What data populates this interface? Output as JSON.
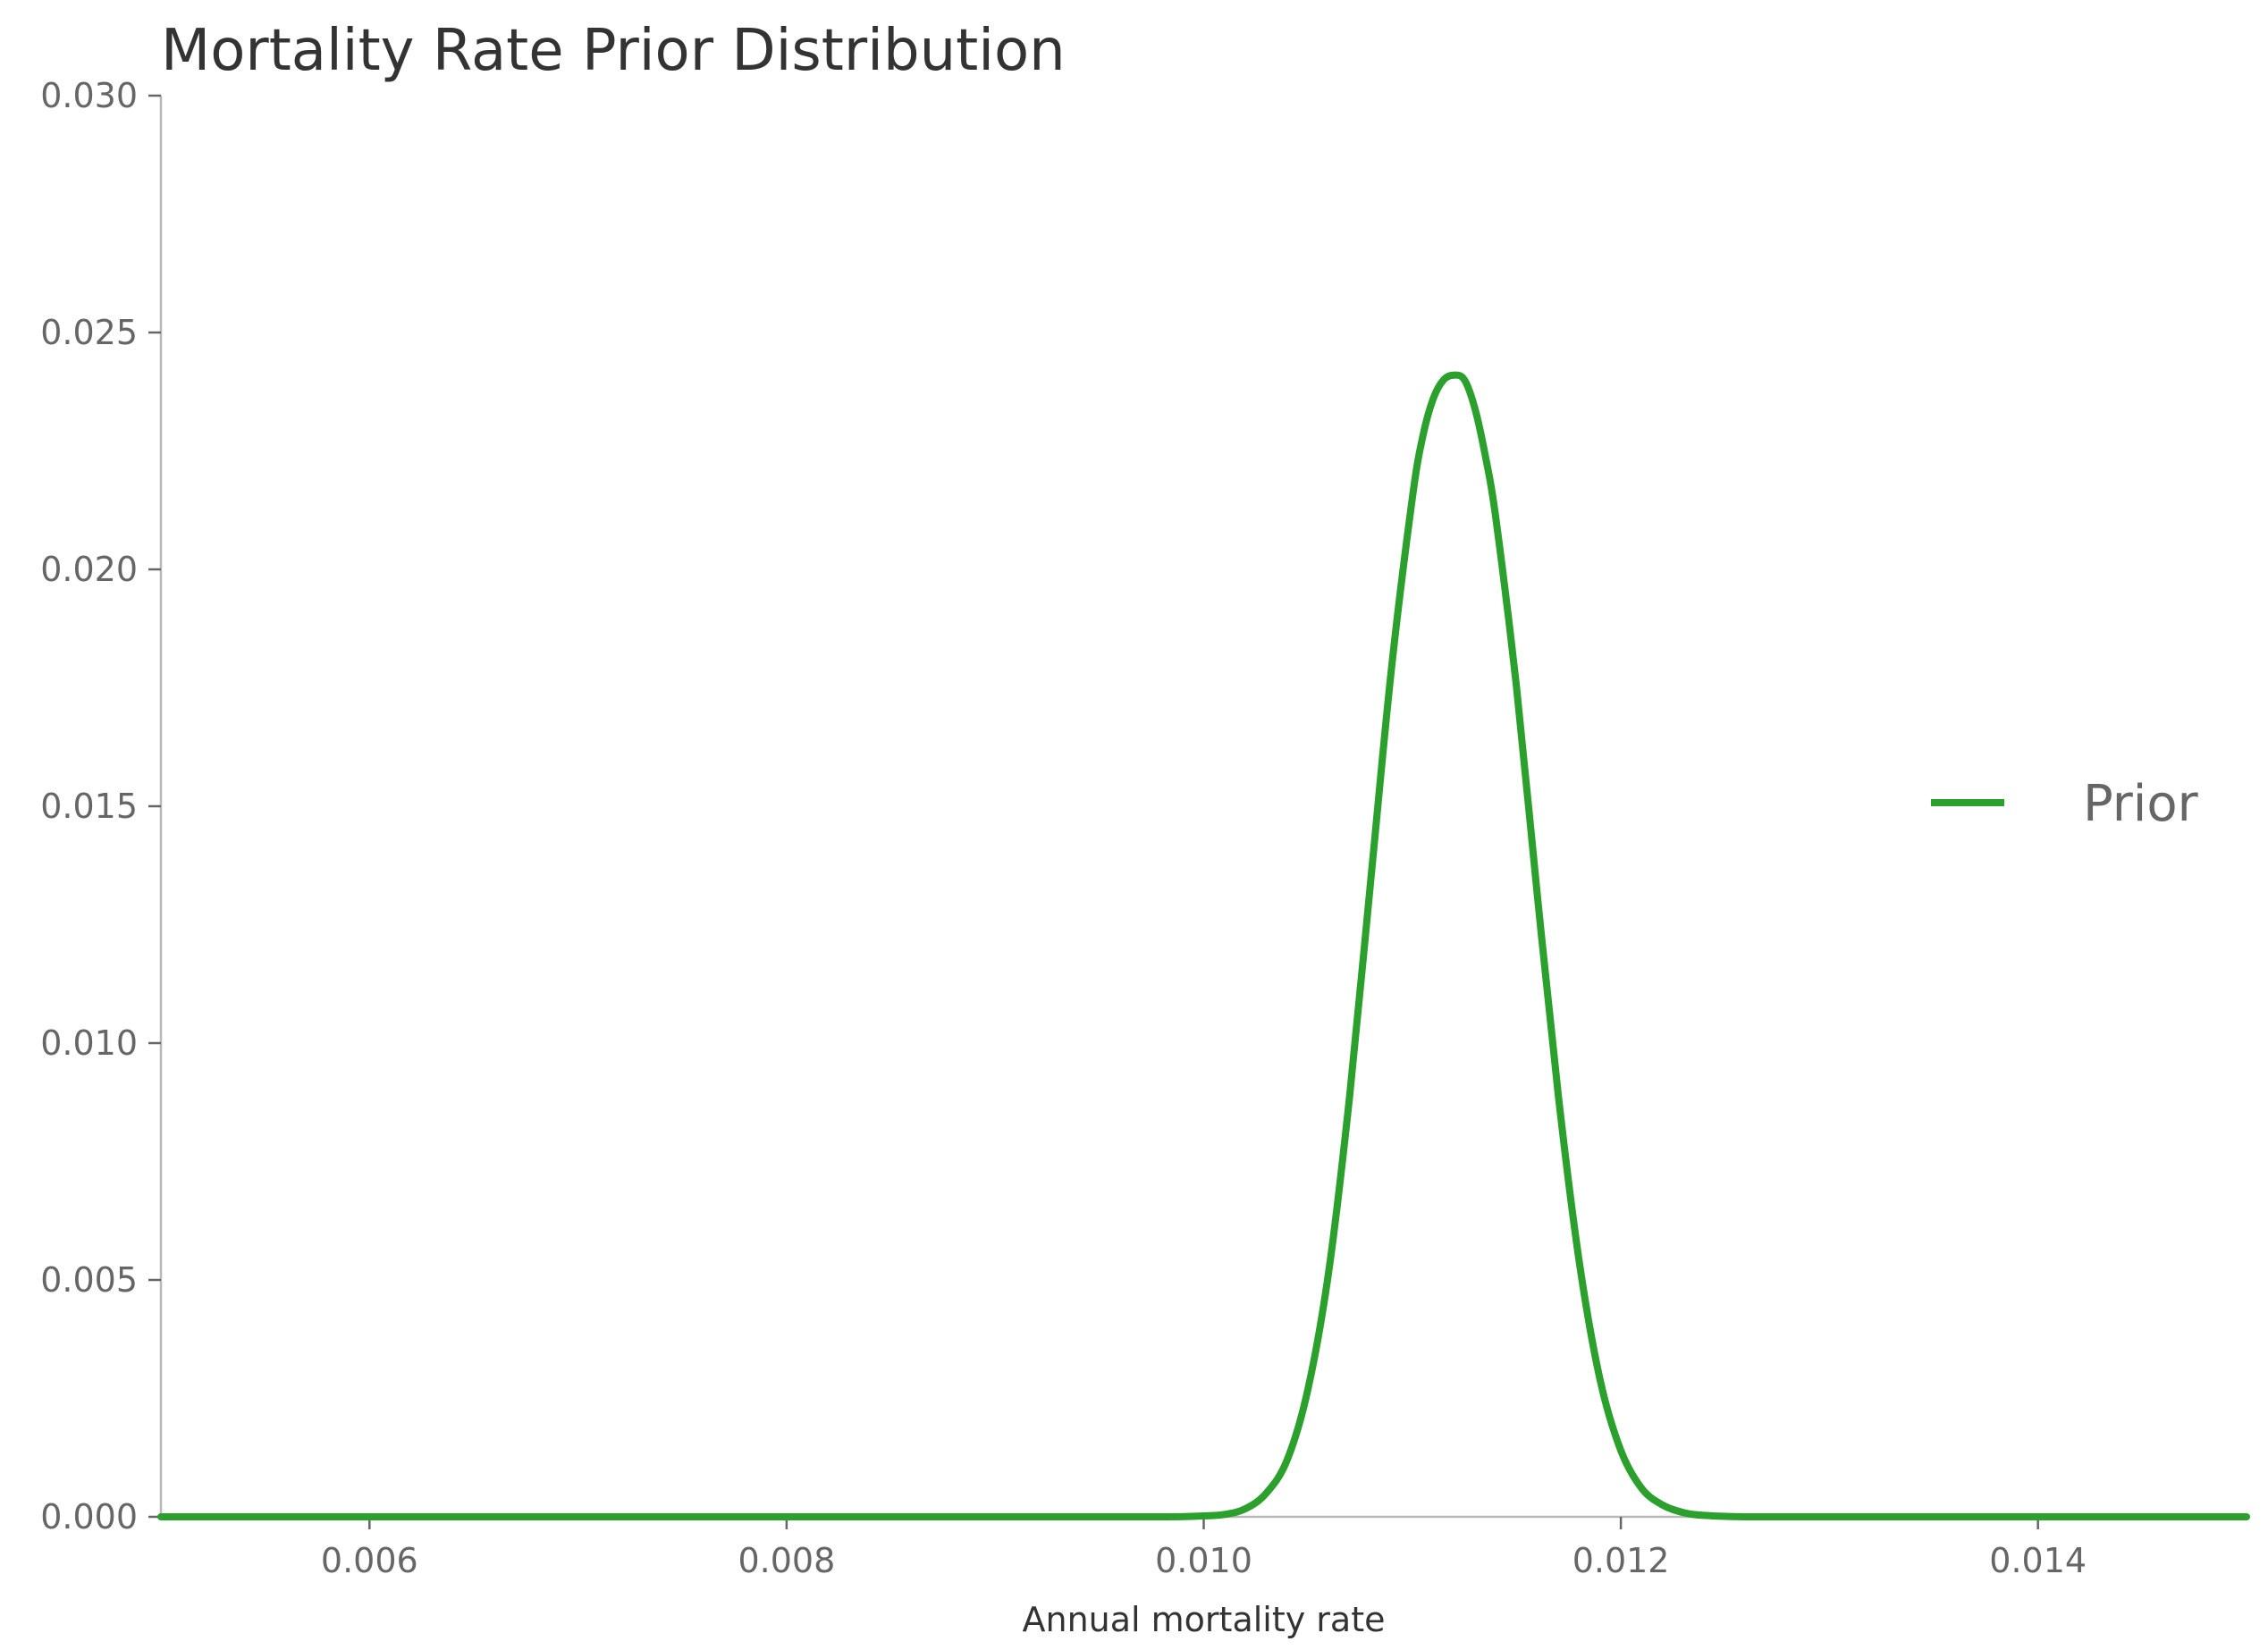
{
  "chart_data": {
    "type": "line",
    "title": "Mortality Rate Prior Distribution",
    "xlabel": "Annual mortality rate",
    "ylabel": "",
    "xlim": [
      0.005,
      0.015
    ],
    "ylim": [
      0.0,
      0.03
    ],
    "xticks": [
      "0.006",
      "0.008",
      "0.010",
      "0.012",
      "0.014"
    ],
    "xtick_values": [
      0.006,
      0.008,
      0.01,
      0.012,
      0.014
    ],
    "yticks": [
      "0.000",
      "0.005",
      "0.010",
      "0.015",
      "0.020",
      "0.025",
      "0.030"
    ],
    "ytick_values": [
      0.0,
      0.005,
      0.01,
      0.015,
      0.02,
      0.025,
      0.03
    ],
    "grid": false,
    "legend_position": "center-right",
    "series": [
      {
        "name": "Prior",
        "color": "#2ca02c",
        "x": [
          0.005,
          0.009,
          0.0098,
          0.01,
          0.0101,
          0.0102,
          0.0103,
          0.0104,
          0.0105,
          0.0106,
          0.0107,
          0.0108,
          0.0109,
          0.011,
          0.01105,
          0.0111,
          0.01115,
          0.0112,
          0.01125,
          0.0113,
          0.01135,
          0.0114,
          0.0115,
          0.0116,
          0.0117,
          0.0118,
          0.0119,
          0.012,
          0.0121,
          0.0122,
          0.0123,
          0.0124,
          0.0126,
          0.013,
          0.015
        ],
        "y": [
          0.0,
          0.0,
          0.0,
          2e-05,
          5e-05,
          0.00017,
          0.0005,
          0.0012,
          0.0027,
          0.0052,
          0.0089,
          0.0134,
          0.0179,
          0.0215,
          0.0228,
          0.0236,
          0.024,
          0.0241,
          0.024,
          0.0234,
          0.0224,
          0.0211,
          0.0175,
          0.0131,
          0.0089,
          0.0054,
          0.0029,
          0.0014,
          0.0006,
          0.00025,
          9e-05,
          3e-05,
          0.0,
          0.0,
          0.0
        ]
      }
    ]
  }
}
